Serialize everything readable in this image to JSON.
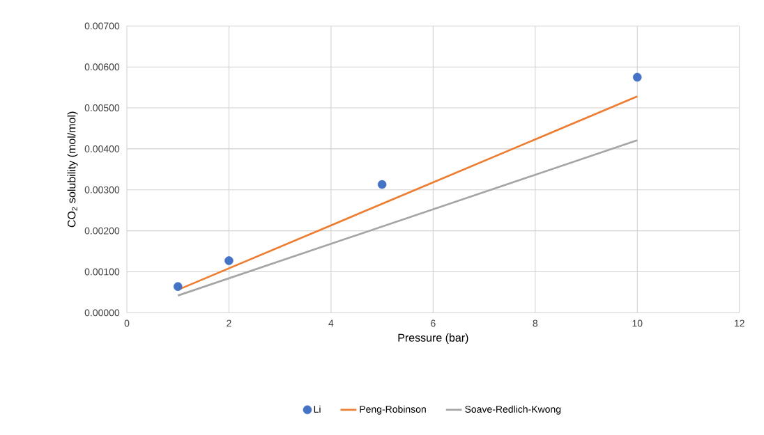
{
  "chart_data": {
    "type": "scatter",
    "xlabel": "Pressure (bar)",
    "ylabel": "CO$_{2}$ solubility (mol/mol)",
    "xlim": [
      0,
      12
    ],
    "xticks": [
      0,
      2,
      4,
      6,
      8,
      10,
      12
    ],
    "ylim": [
      0,
      0.007
    ],
    "yticks": [
      {
        "value": 0,
        "label": "0.00000"
      },
      {
        "value": 0.001,
        "label": "0.00100"
      },
      {
        "value": 0.002,
        "label": "0.00200"
      },
      {
        "value": 0.003,
        "label": "0.00300"
      },
      {
        "value": 0.004,
        "label": "0.00400"
      },
      {
        "value": 0.005,
        "label": "0.00500"
      },
      {
        "value": 0.006,
        "label": "0.00600"
      },
      {
        "value": 0.007,
        "label": "0.00700"
      }
    ],
    "grid": true,
    "legend": "bottom",
    "series": [
      {
        "name": "Li",
        "marker": "circle",
        "color": "#4472c4",
        "x": [
          1,
          2,
          5,
          10
        ],
        "values": [
          0.00064,
          0.00127,
          0.00313,
          0.00575
        ]
      },
      {
        "name": "Peng-Robinson",
        "type": "line",
        "marker": "none",
        "line_style": "solid",
        "color": "#ed7d31",
        "x": [
          1,
          10
        ],
        "values": [
          0.00056,
          0.00528
        ]
      },
      {
        "name": "Soave-Redlich-Kwong",
        "type": "line",
        "marker": "none",
        "line_style": "solid",
        "color": "#a5a5a5",
        "x": [
          1,
          10
        ],
        "values": [
          0.00042,
          0.00421
        ]
      }
    ]
  }
}
